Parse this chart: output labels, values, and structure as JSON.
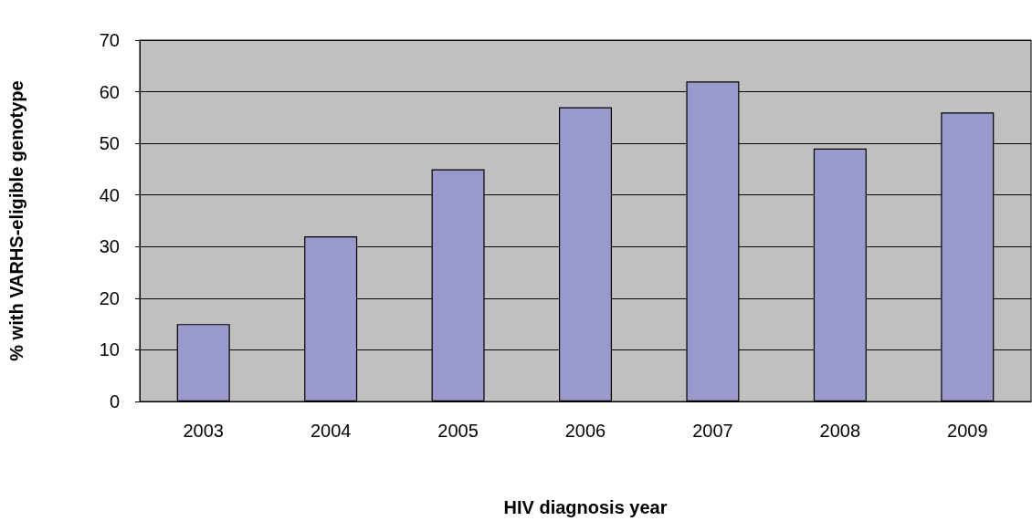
{
  "chart_data": {
    "type": "bar",
    "xlabel": "HIV diagnosis year",
    "ylabel": "% with VARHS-eligible genotype",
    "categories": [
      "2003",
      "2004",
      "2005",
      "2006",
      "2007",
      "2008",
      "2009"
    ],
    "values": [
      15,
      32,
      45,
      57,
      62,
      49,
      56
    ],
    "color": "#9999cc",
    "ylim": [
      0,
      70
    ],
    "yticks": [
      0,
      10,
      20,
      30,
      40,
      50,
      60,
      70
    ],
    "grid": "y"
  }
}
